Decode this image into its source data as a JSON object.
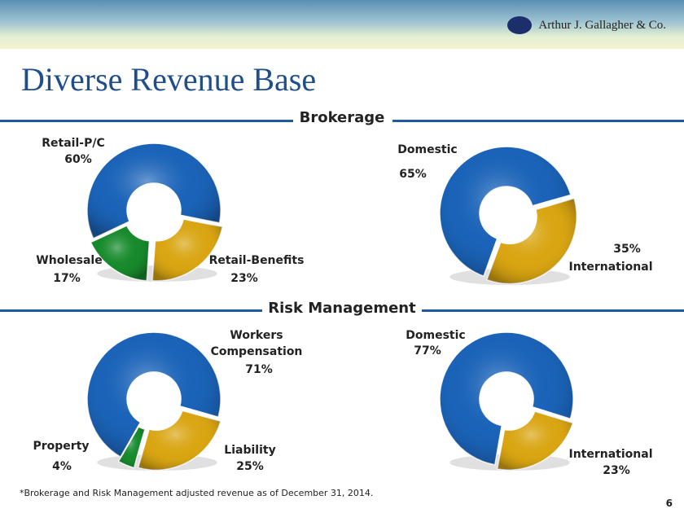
{
  "logo": "Arthur J. Gallagher & Co.",
  "title": "Diverse Revenue Base",
  "sections": [
    "Brokerage",
    "Risk Management"
  ],
  "footnote": "*Brokerage and Risk Management adjusted revenue as of December 31, 2014.",
  "page": "6",
  "chart_data": [
    {
      "type": "pie",
      "categories": [
        "Retail-P/C",
        "Retail-Benefits",
        "Wholesale"
      ],
      "values": [
        60,
        23,
        17
      ],
      "value_labels": [
        "60%",
        "23%",
        "17%"
      ],
      "colors": [
        "#1b63b8",
        "#d9a512",
        "#178a2c"
      ]
    },
    {
      "type": "pie",
      "categories": [
        "Domestic",
        "International"
      ],
      "values": [
        65,
        35
      ],
      "value_labels": [
        "65%",
        "35%"
      ],
      "colors": [
        "#1b63b8",
        "#d9a512"
      ]
    },
    {
      "type": "pie",
      "categories": [
        "Workers Compensation",
        "Liability",
        "Property"
      ],
      "values": [
        71,
        25,
        4
      ],
      "value_labels": [
        "71%",
        "25%",
        "4%"
      ],
      "colors": [
        "#1b63b8",
        "#d9a512",
        "#178a2c"
      ]
    },
    {
      "type": "pie",
      "categories": [
        "Domestic",
        "International"
      ],
      "values": [
        77,
        23
      ],
      "value_labels": [
        "77%",
        "23%"
      ],
      "colors": [
        "#1b63b8",
        "#d9a512"
      ]
    }
  ]
}
